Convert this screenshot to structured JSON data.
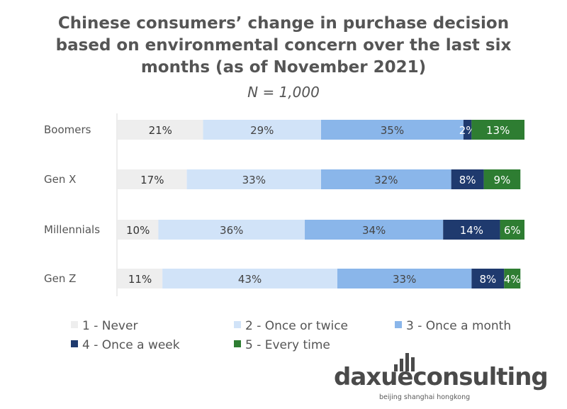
{
  "title_lines": [
    "Chinese consumers’ change in purchase decision",
    "based on environmental concern over the last six",
    "months (as of November 2021)"
  ],
  "subtitle": "N = 1,000",
  "chart_data": {
    "type": "bar",
    "orientation": "horizontal",
    "stacked": true,
    "categories": [
      "Boomers",
      "Gen X",
      "Millennials",
      "Gen Z"
    ],
    "series": [
      {
        "name": "1 - Never",
        "color": "#eeeeee",
        "text_color": "#333333",
        "values": [
          21,
          17,
          10,
          11
        ],
        "labels": [
          "21%",
          "17%",
          "10%",
          "11%"
        ]
      },
      {
        "name": "2 - Once or twice",
        "color": "#d1e3f8",
        "text_color": "#444444",
        "values": [
          29,
          33,
          36,
          43
        ],
        "labels": [
          "29%",
          "33%",
          "36%",
          "43%"
        ]
      },
      {
        "name": "3 - Once a month",
        "color": "#8ab6ea",
        "text_color": "#444444",
        "values": [
          35,
          32,
          34,
          33
        ],
        "labels": [
          "35%",
          "32%",
          "34%",
          "33%"
        ]
      },
      {
        "name": "4 - Once a week",
        "color": "#1f3a6e",
        "text_color": "#ffffff",
        "values": [
          2,
          8,
          14,
          8
        ],
        "labels": [
          "2%",
          "8%",
          "14%",
          "8%"
        ]
      },
      {
        "name": "5 - Every time",
        "color": "#2e7d32",
        "text_color": "#ffffff",
        "values": [
          13,
          9,
          6,
          4
        ],
        "labels": [
          "13%",
          "9%",
          "6%",
          "4%"
        ]
      }
    ],
    "xlim": [
      0,
      100
    ],
    "grid": false,
    "legend_position": "bottom"
  },
  "branding": {
    "logo_text": "daxueconsulting",
    "tagline": "beijing shanghai hongkong"
  }
}
